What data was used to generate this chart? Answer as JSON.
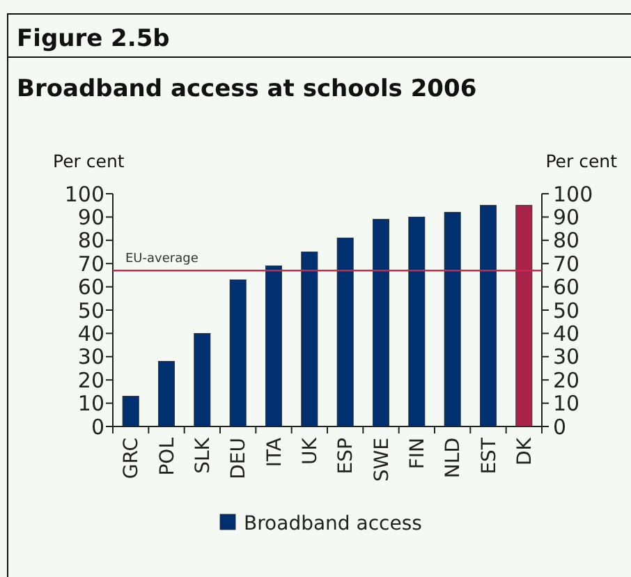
{
  "chart_data": {
    "type": "bar",
    "title": "Figure 2.5b",
    "subtitle": "Broadband access at schools 2006",
    "ylabel": "Per cent",
    "y2label": "Per cent",
    "categories": [
      "GRC",
      "POL",
      "SLK",
      "DEU",
      "ITA",
      "UK",
      "ESP",
      "SWE",
      "FIN",
      "NLD",
      "EST",
      "DK"
    ],
    "series": [
      {
        "name": "Broadband access",
        "color": "#003070",
        "colors": [
          "#003070",
          "#003070",
          "#003070",
          "#003070",
          "#003070",
          "#003070",
          "#003070",
          "#003070",
          "#003070",
          "#003070",
          "#003070",
          "#a8234a"
        ],
        "values": [
          13,
          28,
          40,
          63,
          69,
          75,
          81,
          89,
          90,
          92,
          95,
          95
        ]
      }
    ],
    "ylim": [
      0,
      100
    ],
    "yticks": [
      0,
      10,
      20,
      30,
      40,
      50,
      60,
      70,
      80,
      90,
      100
    ],
    "y2lim": [
      0,
      100
    ],
    "y2ticks": [
      0,
      10,
      20,
      30,
      40,
      50,
      60,
      70,
      80,
      90,
      100
    ],
    "ref_lines": [
      {
        "axis": "y",
        "value": 67,
        "label": "EU-average",
        "color": "#c8284a"
      }
    ],
    "legend": "bottom"
  }
}
